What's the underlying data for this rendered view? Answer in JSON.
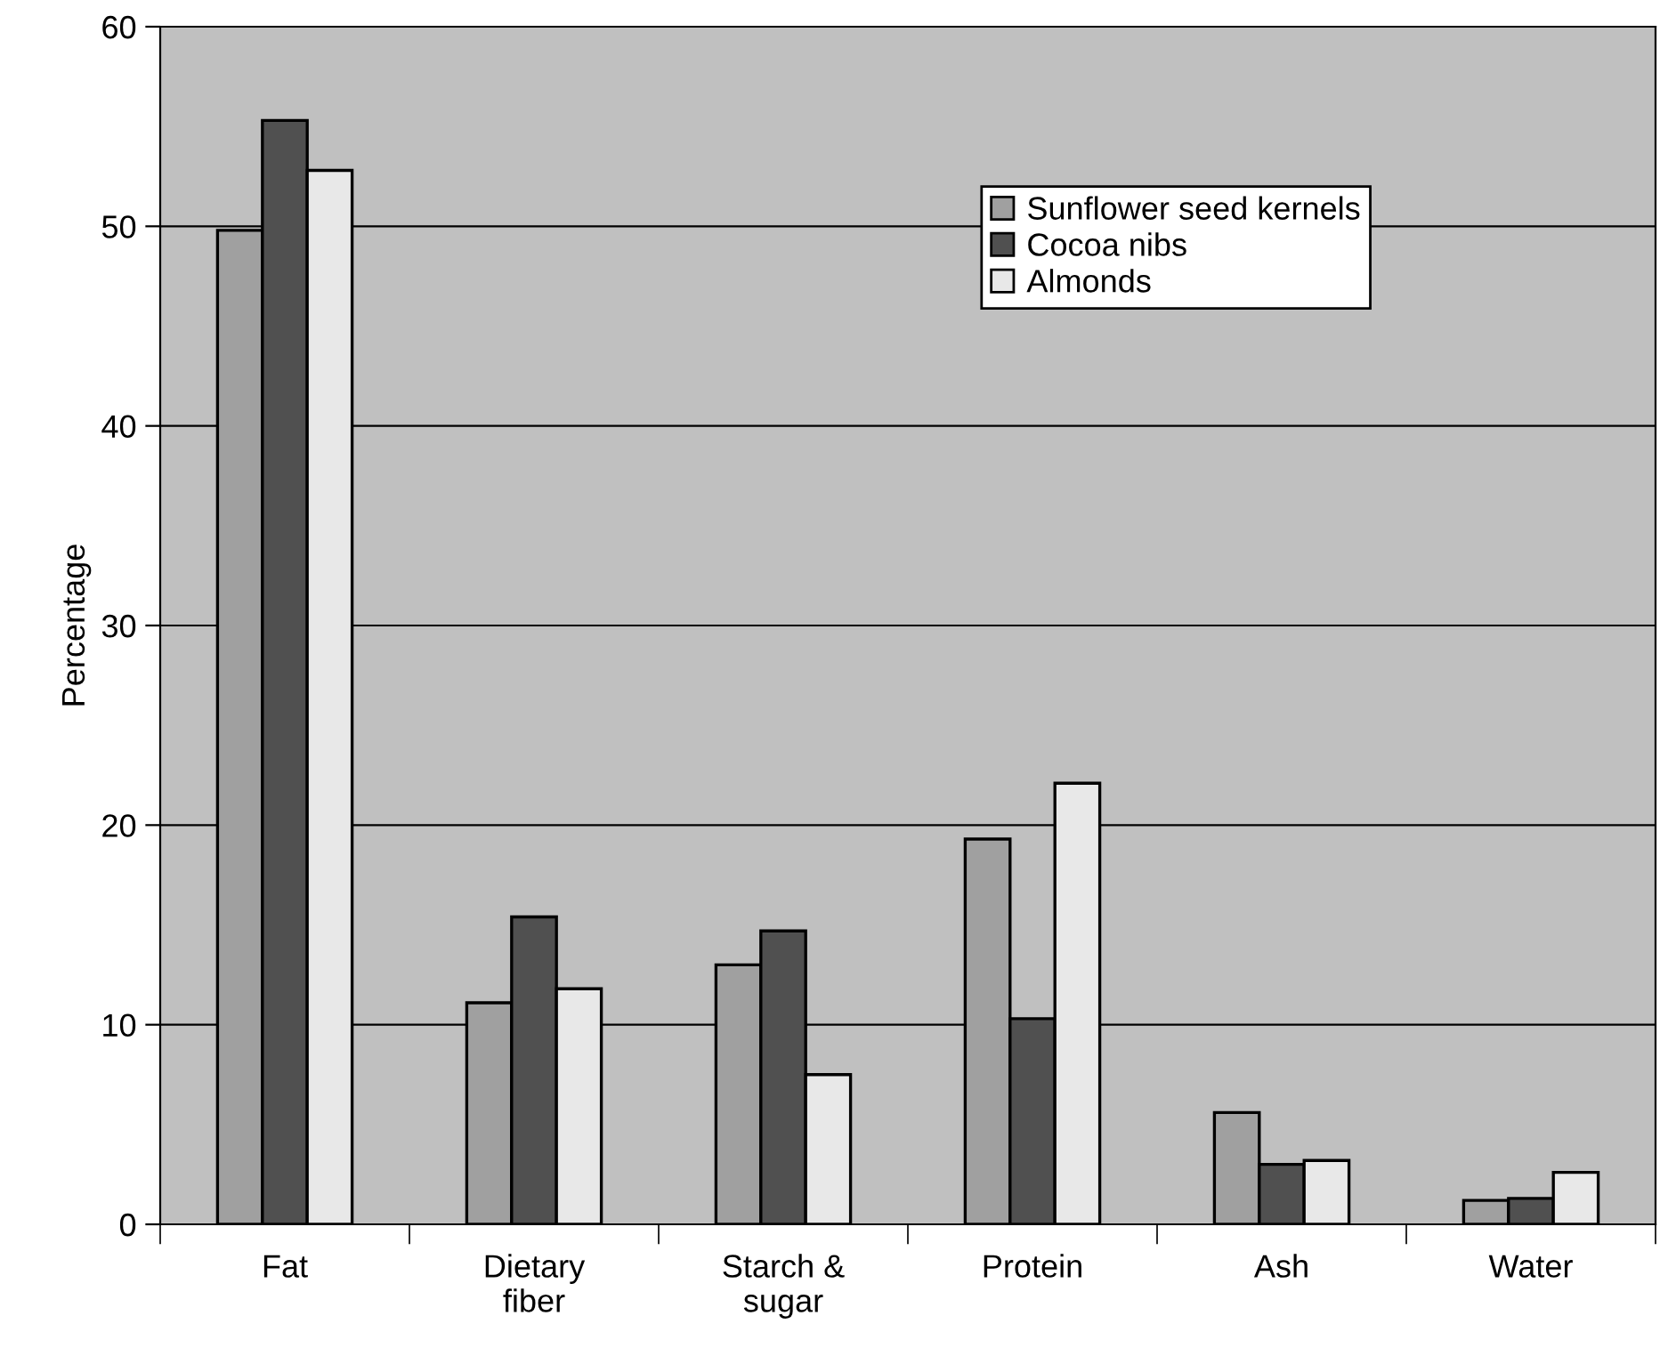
{
  "chart_data": {
    "type": "bar",
    "ylabel": "Percentage",
    "categories": [
      "Fat",
      "Dietary\nfiber",
      "Starch &\nsugar",
      "Protein",
      "Ash",
      "Water"
    ],
    "series": [
      {
        "name": "Sunflower seed kernels",
        "color": "#a0a0a0",
        "values": [
          49.8,
          11.1,
          13.0,
          19.3,
          5.6,
          1.2
        ]
      },
      {
        "name": "Cocoa nibs",
        "color": "#505050",
        "values": [
          55.3,
          15.4,
          14.7,
          10.3,
          3.0,
          1.3
        ]
      },
      {
        "name": "Almonds",
        "color": "#e8e8e8",
        "values": [
          52.8,
          11.8,
          7.5,
          22.1,
          3.2,
          2.6
        ]
      }
    ],
    "ylim": [
      0,
      60
    ],
    "yticks": [
      0,
      10,
      20,
      30,
      40,
      50,
      60
    ],
    "grid": "y",
    "legend": "top right"
  }
}
